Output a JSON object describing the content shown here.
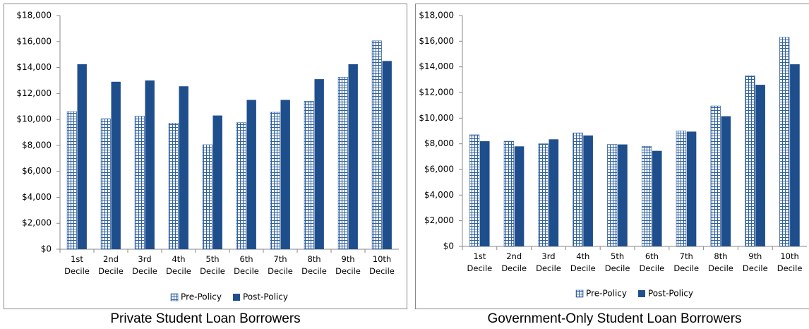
{
  "chart_data": [
    {
      "type": "bar",
      "title": "Private Student Loan Borrowers",
      "categories": [
        "1st Decile",
        "2nd Decile",
        "3rd Decile",
        "4th Decile",
        "5th Decile",
        "6th Decile",
        "7th Decile",
        "8th Decile",
        "9th Decile",
        "10th Decile"
      ],
      "series": [
        {
          "name": "Pre-Policy",
          "color": "#2e5f9e",
          "pattern": "grid",
          "values": [
            10600,
            10050,
            10250,
            9700,
            8050,
            9750,
            10550,
            11400,
            13250,
            16050
          ]
        },
        {
          "name": "Post-Policy",
          "color": "#1f4e8c",
          "pattern": "solid",
          "values": [
            14250,
            12900,
            13000,
            12550,
            10300,
            11500,
            11500,
            13100,
            14250,
            14500
          ]
        }
      ],
      "ylim": [
        0,
        18000
      ],
      "yticks": [
        {
          "value": 0,
          "label": "$0"
        },
        {
          "value": 2000,
          "label": "$2,000"
        },
        {
          "value": 4000,
          "label": "$4,000"
        },
        {
          "value": 6000,
          "label": "$6,000"
        },
        {
          "value": 8000,
          "label": "$8,000"
        },
        {
          "value": 10000,
          "label": "$10,000"
        },
        {
          "value": 12000,
          "label": "$12,000"
        },
        {
          "value": 14000,
          "label": "$14,000"
        },
        {
          "value": 16000,
          "label": "$16,000"
        },
        {
          "value": 18000,
          "label": "$18,000"
        }
      ],
      "grid": false,
      "legend": "bottom"
    },
    {
      "type": "bar",
      "title": "Government-Only Student Loan Borrowers",
      "categories": [
        "1st Decile",
        "2nd Decile",
        "3rd Decile",
        "4th Decile",
        "5th Decile",
        "6th Decile",
        "7th Decile",
        "8th Decile",
        "9th Decile",
        "10th Decile"
      ],
      "series": [
        {
          "name": "Pre-Policy",
          "color": "#2e5f9e",
          "pattern": "grid",
          "values": [
            8700,
            8200,
            8000,
            8850,
            7950,
            7800,
            9000,
            10950,
            13300,
            16300
          ]
        },
        {
          "name": "Post-Policy",
          "color": "#1f4e8c",
          "pattern": "solid",
          "values": [
            8200,
            7800,
            8350,
            8650,
            7950,
            7450,
            8950,
            10150,
            12600,
            14200
          ]
        }
      ],
      "ylim": [
        0,
        18000
      ],
      "yticks": [
        {
          "value": 0,
          "label": "$0"
        },
        {
          "value": 2000,
          "label": "$2,000"
        },
        {
          "value": 4000,
          "label": "$4,000"
        },
        {
          "value": 6000,
          "label": "$6,000"
        },
        {
          "value": 8000,
          "label": "$8,000"
        },
        {
          "value": 10000,
          "label": "$10,000"
        },
        {
          "value": 12000,
          "label": "$12,000"
        },
        {
          "value": 14000,
          "label": "$14,000"
        },
        {
          "value": 16000,
          "label": "$16,000"
        },
        {
          "value": 18000,
          "label": "$18,000"
        }
      ],
      "grid": false,
      "legend": "bottom"
    }
  ]
}
